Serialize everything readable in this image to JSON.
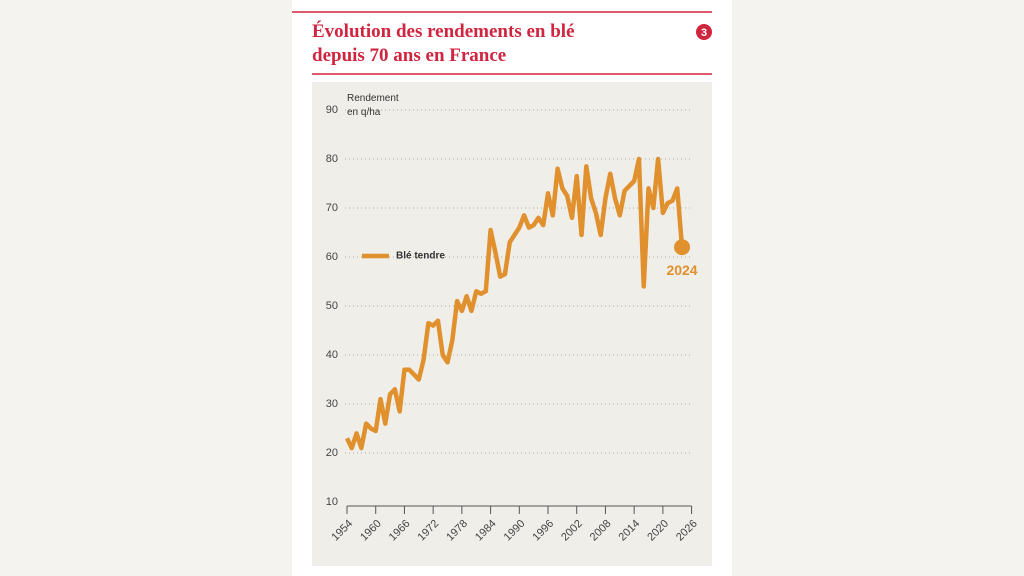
{
  "chart_data": {
    "type": "line",
    "badge": "3",
    "title": "Évolution des rendements en blé depuis 70 ans en France",
    "y_label": "Rendement en q/ha",
    "annotation": "2024",
    "x": [
      1954,
      1955,
      1956,
      1957,
      1958,
      1959,
      1960,
      1961,
      1962,
      1963,
      1964,
      1965,
      1966,
      1967,
      1968,
      1969,
      1970,
      1971,
      1972,
      1973,
      1974,
      1975,
      1976,
      1977,
      1978,
      1979,
      1980,
      1981,
      1982,
      1983,
      1984,
      1985,
      1986,
      1987,
      1988,
      1989,
      1990,
      1991,
      1992,
      1993,
      1994,
      1995,
      1996,
      1997,
      1998,
      1999,
      2000,
      2001,
      2002,
      2003,
      2004,
      2005,
      2006,
      2007,
      2008,
      2009,
      2010,
      2011,
      2012,
      2013,
      2014,
      2015,
      2016,
      2017,
      2018,
      2019,
      2020,
      2021,
      2022,
      2023,
      2024
    ],
    "series": [
      {
        "name": "Blé tendre",
        "color": "#e1902e",
        "values": [
          23,
          21,
          24,
          21,
          26,
          25,
          24.5,
          31,
          26,
          32,
          33,
          28.5,
          37,
          37,
          36,
          35,
          39,
          46.5,
          46,
          47,
          40,
          38.5,
          43,
          51,
          49,
          52,
          49,
          53,
          52.5,
          53,
          65.5,
          61,
          56,
          56.5,
          63,
          64.5,
          66,
          68.5,
          66,
          66.5,
          68,
          66.5,
          73,
          68.5,
          78,
          74,
          72.5,
          68,
          76.5,
          64.5,
          78.5,
          72,
          69,
          64.5,
          72,
          77,
          72,
          68.5,
          73.5,
          74.5,
          75.5,
          80,
          54,
          74,
          70,
          80,
          69,
          71,
          71.5,
          74,
          62
        ]
      }
    ],
    "xlim": [
      1954,
      2026
    ],
    "xticks": [
      1954,
      1960,
      1966,
      1972,
      1978,
      1984,
      1990,
      1996,
      2002,
      2008,
      2014,
      2020,
      2026
    ],
    "ylim": [
      10,
      90
    ],
    "yticks": [
      10,
      20,
      30,
      40,
      50,
      60,
      70,
      80,
      90
    ],
    "grid": true
  }
}
